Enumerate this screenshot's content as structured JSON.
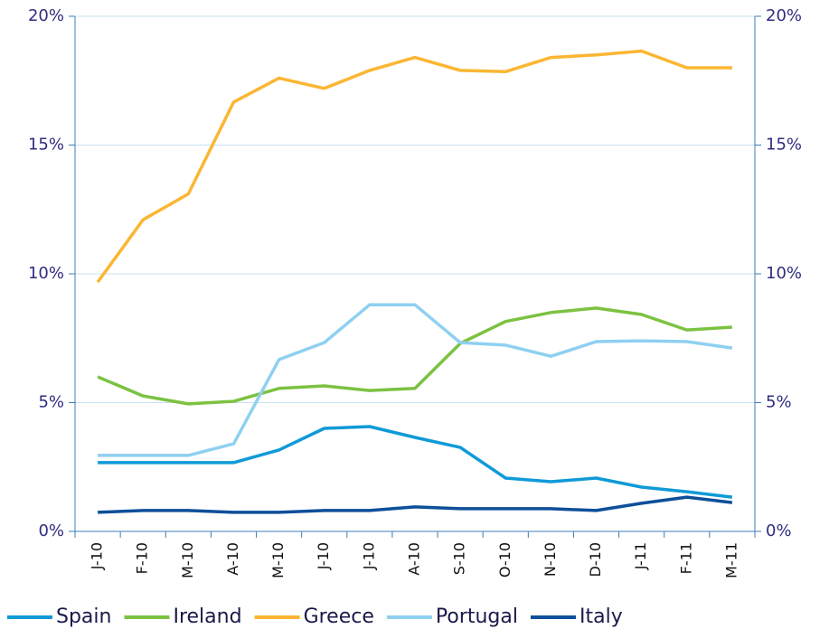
{
  "chart_data": {
    "type": "line",
    "categories": [
      "J-10",
      "F-10",
      "M-10",
      "A-10",
      "M-10",
      "J-10",
      "J-10",
      "A-10",
      "S-10",
      "O-10",
      "N-10",
      "D-10",
      "J-11",
      "F-11",
      "M-11"
    ],
    "series": [
      {
        "name": "Spain",
        "color": "#0f9ad7",
        "values": [
          2.67,
          2.67,
          2.67,
          2.67,
          3.16,
          4.0,
          4.07,
          3.65,
          3.26,
          2.07,
          1.93,
          2.07,
          1.72,
          1.54,
          1.33
        ]
      },
      {
        "name": "Ireland",
        "color": "#7cc242",
        "values": [
          6.0,
          5.26,
          4.95,
          5.05,
          5.55,
          5.65,
          5.47,
          5.55,
          7.3,
          8.15,
          8.5,
          8.67,
          8.42,
          7.82,
          7.93
        ]
      },
      {
        "name": "Greece",
        "color": "#fbb633",
        "values": [
          9.68,
          12.1,
          13.1,
          16.67,
          17.6,
          17.2,
          17.9,
          18.4,
          17.9,
          17.85,
          18.4,
          18.5,
          18.65,
          18.0,
          18.0
        ]
      },
      {
        "name": "Portugal",
        "color": "#8fd0f0",
        "values": [
          2.95,
          2.95,
          2.95,
          3.4,
          6.67,
          7.33,
          8.8,
          8.8,
          7.33,
          7.23,
          6.8,
          7.37,
          7.4,
          7.37,
          7.12
        ]
      },
      {
        "name": "Italy",
        "color": "#0d4f9a",
        "values": [
          0.74,
          0.81,
          0.81,
          0.74,
          0.74,
          0.81,
          0.81,
          0.95,
          0.88,
          0.88,
          0.88,
          0.81,
          1.09,
          1.33,
          1.12
        ]
      }
    ],
    "ylim": [
      0,
      20
    ],
    "yticks": [
      {
        "value": 0,
        "label": "0%"
      },
      {
        "value": 5,
        "label": "5%"
      },
      {
        "value": 10,
        "label": "10%"
      },
      {
        "value": 15,
        "label": "15%"
      },
      {
        "value": 20,
        "label": "20%"
      }
    ],
    "y2lim": [
      0,
      20
    ],
    "y2ticks": [
      {
        "value": 0,
        "label": "0%"
      },
      {
        "value": 5,
        "label": "5%"
      },
      {
        "value": 10,
        "label": "10%"
      },
      {
        "value": 15,
        "label": "15%"
      },
      {
        "value": 20,
        "label": "20%"
      }
    ],
    "grid": true,
    "legend": "bottom"
  }
}
